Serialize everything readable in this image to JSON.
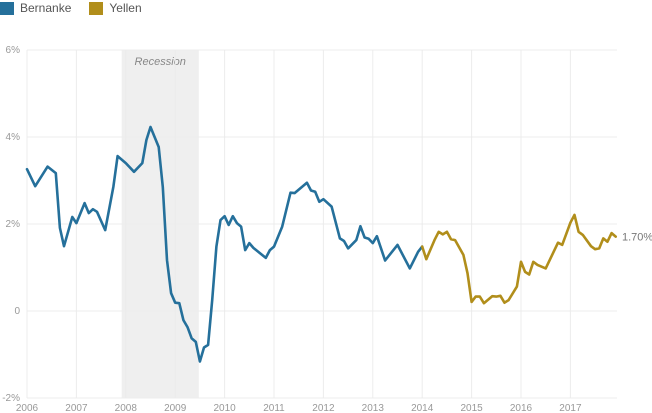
{
  "chart_data": {
    "type": "line",
    "title": "",
    "xlabel": "",
    "ylabel": "",
    "xlim": [
      "2006-01",
      "2017-12"
    ],
    "ylim": [
      -2,
      6
    ],
    "y_ticks": [
      {
        "value": 6,
        "label": "6%"
      },
      {
        "value": 4,
        "label": "4%"
      },
      {
        "value": 2,
        "label": "2%"
      },
      {
        "value": 0,
        "label": "0"
      },
      {
        "value": -2,
        "label": "-2%"
      }
    ],
    "x_ticks": [
      "2006",
      "2007",
      "2008",
      "2009",
      "2010",
      "2011",
      "2012",
      "2013",
      "2014",
      "2015",
      "2016",
      "2017"
    ],
    "grid": true,
    "legend_placement": "top-left",
    "recession": {
      "label": "Recession",
      "start": "2007-12",
      "end": "2009-06",
      "color": "#efefef"
    },
    "end_label": "1.70%",
    "series": [
      {
        "name": "Bernanke",
        "color": "#25709b",
        "points": [
          [
            "2006-01",
            3.26
          ],
          [
            "2006-03",
            2.87
          ],
          [
            "2006-06",
            3.32
          ],
          [
            "2006-08",
            3.17
          ],
          [
            "2006-09",
            1.91
          ],
          [
            "2006-10",
            1.49
          ],
          [
            "2006-12",
            2.16
          ],
          [
            "2007-01",
            2.02
          ],
          [
            "2007-03",
            2.48
          ],
          [
            "2007-04",
            2.25
          ],
          [
            "2007-05",
            2.34
          ],
          [
            "2007-06",
            2.28
          ],
          [
            "2007-08",
            1.86
          ],
          [
            "2007-10",
            2.86
          ],
          [
            "2007-11",
            3.56
          ],
          [
            "2008-01",
            3.4
          ],
          [
            "2008-03",
            3.2
          ],
          [
            "2008-05",
            3.4
          ],
          [
            "2008-06",
            3.93
          ],
          [
            "2008-07",
            4.23
          ],
          [
            "2008-09",
            3.77
          ],
          [
            "2008-10",
            2.85
          ],
          [
            "2008-11",
            1.17
          ],
          [
            "2008-12",
            0.41
          ],
          [
            "2009-01",
            0.19
          ],
          [
            "2009-02",
            0.18
          ],
          [
            "2009-03",
            -0.21
          ],
          [
            "2009-04",
            -0.37
          ],
          [
            "2009-05",
            -0.63
          ],
          [
            "2009-06",
            -0.71
          ],
          [
            "2009-07",
            -1.16
          ],
          [
            "2009-08",
            -0.84
          ],
          [
            "2009-09",
            -0.78
          ],
          [
            "2009-10",
            0.25
          ],
          [
            "2009-11",
            1.48
          ],
          [
            "2009-12",
            2.09
          ],
          [
            "2010-01",
            2.18
          ],
          [
            "2010-02",
            1.98
          ],
          [
            "2010-03",
            2.18
          ],
          [
            "2010-04",
            2.02
          ],
          [
            "2010-05",
            1.94
          ],
          [
            "2010-06",
            1.4
          ],
          [
            "2010-07",
            1.56
          ],
          [
            "2010-08",
            1.45
          ],
          [
            "2010-11",
            1.22
          ],
          [
            "2010-12",
            1.4
          ],
          [
            "2011-01",
            1.48
          ],
          [
            "2011-03",
            1.94
          ],
          [
            "2011-05",
            2.72
          ],
          [
            "2011-06",
            2.71
          ],
          [
            "2011-09",
            2.95
          ],
          [
            "2011-10",
            2.77
          ],
          [
            "2011-11",
            2.74
          ],
          [
            "2011-12",
            2.51
          ],
          [
            "2012-01",
            2.57
          ],
          [
            "2012-03",
            2.4
          ],
          [
            "2012-05",
            1.67
          ],
          [
            "2012-06",
            1.61
          ],
          [
            "2012-07",
            1.44
          ],
          [
            "2012-09",
            1.63
          ],
          [
            "2012-10",
            1.95
          ],
          [
            "2012-11",
            1.69
          ],
          [
            "2012-12",
            1.66
          ],
          [
            "2013-01",
            1.56
          ],
          [
            "2013-02",
            1.72
          ],
          [
            "2013-04",
            1.16
          ],
          [
            "2013-07",
            1.52
          ],
          [
            "2013-10",
            0.98
          ],
          [
            "2013-12",
            1.36
          ],
          [
            "2014-01",
            1.48
          ]
        ]
      },
      {
        "name": "Yellen",
        "color": "#b18e1b",
        "points": [
          [
            "2014-01",
            1.48
          ],
          [
            "2014-02",
            1.19
          ],
          [
            "2014-04",
            1.63
          ],
          [
            "2014-05",
            1.82
          ],
          [
            "2014-06",
            1.76
          ],
          [
            "2014-07",
            1.82
          ],
          [
            "2014-08",
            1.65
          ],
          [
            "2014-09",
            1.63
          ],
          [
            "2014-11",
            1.29
          ],
          [
            "2014-12",
            0.87
          ],
          [
            "2015-01",
            0.21
          ],
          [
            "2015-02",
            0.33
          ],
          [
            "2015-03",
            0.33
          ],
          [
            "2015-04",
            0.18
          ],
          [
            "2015-06",
            0.34
          ],
          [
            "2015-07",
            0.33
          ],
          [
            "2015-08",
            0.35
          ],
          [
            "2015-09",
            0.19
          ],
          [
            "2015-10",
            0.25
          ],
          [
            "2015-12",
            0.56
          ],
          [
            "2016-01",
            1.13
          ],
          [
            "2016-02",
            0.9
          ],
          [
            "2016-03",
            0.84
          ],
          [
            "2016-04",
            1.13
          ],
          [
            "2016-05",
            1.06
          ],
          [
            "2016-07",
            0.98
          ],
          [
            "2016-10",
            1.57
          ],
          [
            "2016-11",
            1.52
          ],
          [
            "2017-01",
            2.03
          ],
          [
            "2017-02",
            2.21
          ],
          [
            "2017-03",
            1.82
          ],
          [
            "2017-04",
            1.75
          ],
          [
            "2017-06",
            1.49
          ],
          [
            "2017-07",
            1.42
          ],
          [
            "2017-08",
            1.44
          ],
          [
            "2017-09",
            1.67
          ],
          [
            "2017-10",
            1.59
          ],
          [
            "2017-11",
            1.79
          ],
          [
            "2017-12",
            1.71
          ]
        ]
      }
    ]
  }
}
